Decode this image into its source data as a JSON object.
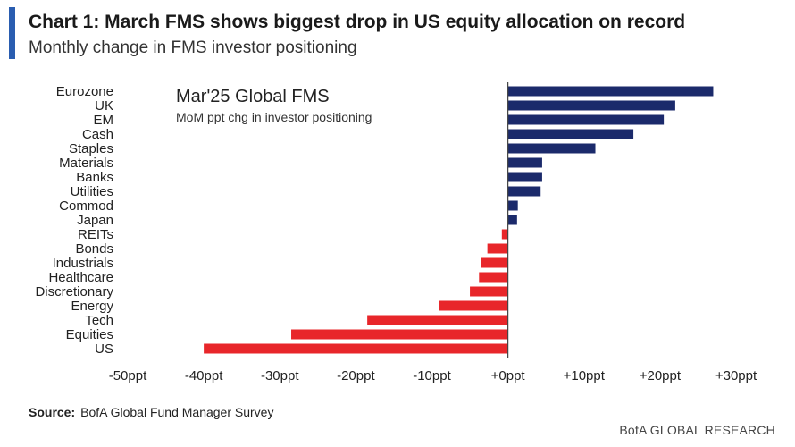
{
  "header": {
    "title": "Chart 1: March FMS shows biggest drop in US equity allocation on record",
    "subtitle": "Monthly change in FMS investor positioning"
  },
  "annotation": {
    "title": "Mar'25 Global FMS",
    "subtitle": "MoM ppt chg in investor positioning"
  },
  "source": {
    "label": "Source:",
    "text": "BofA Global Fund Manager Survey"
  },
  "footer": "BofA GLOBAL RESEARCH",
  "chart_data": {
    "type": "bar",
    "orientation": "horizontal",
    "categories": [
      "Eurozone",
      "UK",
      "EM",
      "Cash",
      "Staples",
      "Materials",
      "Banks",
      "Utilities",
      "Commod",
      "Japan",
      "REITs",
      "Bonds",
      "Industrials",
      "Healthcare",
      "Discretionary",
      "Energy",
      "Tech",
      "Equities",
      "US"
    ],
    "values": [
      27,
      22,
      20.5,
      16.5,
      11.5,
      4.5,
      4.5,
      4.3,
      1.3,
      1.2,
      -0.8,
      -2.7,
      -3.5,
      -3.8,
      -5,
      -9,
      -18.5,
      -28.5,
      -40
    ],
    "title": "Mar'25 Global FMS",
    "subtitle": "MoM ppt chg in investor positioning",
    "xlim": [
      -50,
      30
    ],
    "xticks": [
      "-50ppt",
      "-40ppt",
      "-30ppt",
      "-20ppt",
      "-10ppt",
      "+0ppt",
      "+10ppt",
      "+20ppt",
      "+30ppt"
    ],
    "xlabel": "",
    "ylabel": "",
    "grid": false,
    "colors": {
      "positive": "#1b2a6b",
      "negative": "#e8262a",
      "axis": "#444444",
      "header_accent": "#2a5db0"
    }
  }
}
